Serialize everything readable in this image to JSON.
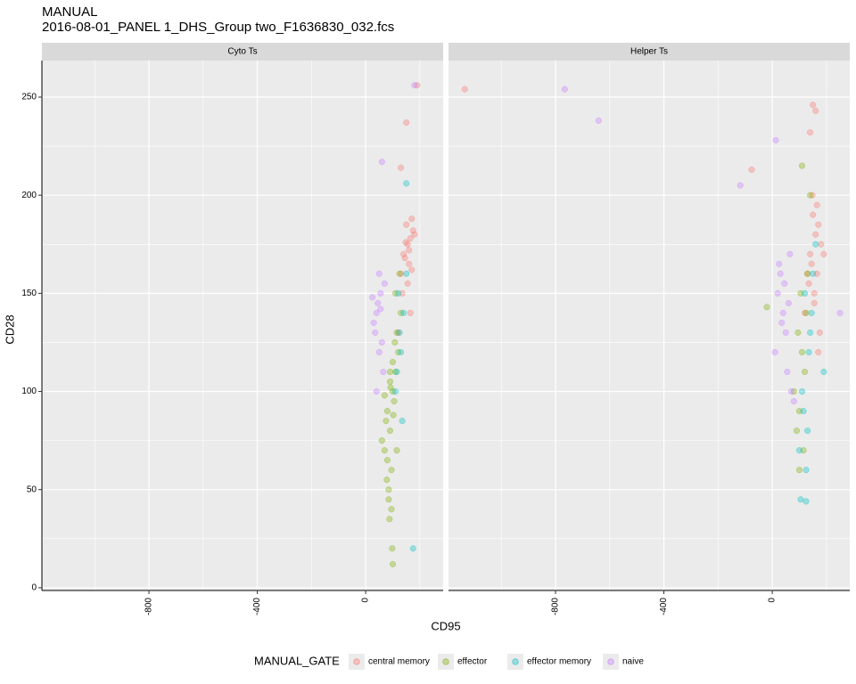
{
  "chart_data": {
    "type": "scatter",
    "title": "MANUAL",
    "subtitle": "2016-08-01_PANEL 1_DHS_Group two_F1636830_032.fcs",
    "x_label": "CD95",
    "y_label": "CD28",
    "legend_title": "MANUAL_GATE",
    "facets": [
      "Cyto Ts",
      "Helper Ts"
    ],
    "xlim": [
      -1195,
      286
    ],
    "ylim": [
      -1.4,
      268.6
    ],
    "xticks": [
      -800,
      -400,
      0
    ],
    "yticks": [
      0,
      50,
      100,
      150,
      200,
      250
    ],
    "minor_xticks": [
      -1000,
      -600,
      -200,
      200
    ],
    "minor_yticks": [
      25,
      75,
      125,
      175,
      225
    ],
    "grid": true,
    "series": [
      {
        "name": "central memory",
        "color": "#F8766D",
        "x": [
          [
            150,
            165,
            140,
            175,
            160,
            130,
            155,
            170,
            145,
            180,
            135,
            160,
            190,
            150,
            148,
            130,
            165,
            120,
            155,
            170
          ],
          [
            -1135,
            150,
            160,
            140,
            170,
            130,
            180,
            155,
            165,
            145,
            120,
            175,
            150,
            160,
            148,
            135,
            190,
            -76,
            170,
            155,
            165,
            140
          ]
        ],
        "values": [
          [
            185,
            178,
            170,
            182,
            165,
            160,
            175,
            188,
            168,
            180,
            150,
            172,
            256,
            237,
            176,
            214,
            140,
            130,
            155,
            162
          ],
          [
            254,
            190,
            180,
            170,
            185,
            160,
            175,
            150,
            195,
            165,
            140,
            130,
            246,
            243,
            200,
            155,
            170,
            213,
            120,
            145,
            160,
            232
          ]
        ]
      },
      {
        "name": "effector",
        "color": "#7CAE00",
        "x": [
          [
            80,
            100,
            90,
            110,
            70,
            120,
            95,
            85,
            105,
            75,
            115,
            90,
            100,
            60,
            130,
            95,
            80,
            110,
            88,
            102,
            92,
            78,
            108,
            98,
            85,
            125,
            70,
            115,
            90,
            100
          ],
          [
            100,
            120,
            90,
            110,
            130,
            80,
            105,
            115,
            95,
            125,
            140,
            100,
            110,
            -20
          ]
        ],
        "values": [
          [
            90,
            100,
            80,
            110,
            70,
            120,
            60,
            50,
            95,
            85,
            130,
            105,
            115,
            75,
            140,
            40,
            65,
            150,
            35,
            88,
            102,
            55,
            125,
            20,
            45,
            160,
            98,
            70,
            110,
            12
          ],
          [
            90,
            110,
            80,
            120,
            160,
            100,
            150,
            70,
            130,
            140,
            200,
            60,
            215,
            143
          ]
        ]
      },
      {
        "name": "effector memory",
        "color": "#00BFC4",
        "x": [
          [
            120,
            140,
            130,
            110,
            150,
            125,
            135,
            150,
            115,
            175
          ],
          [
            120,
            140,
            110,
            130,
            150,
            100,
            125,
            145,
            115,
            135,
            105,
            160,
            125,
            190
          ]
        ],
        "values": [
          [
            150,
            140,
            120,
            100,
            160,
            130,
            85,
            206,
            110,
            20
          ],
          [
            150,
            130,
            100,
            80,
            160,
            70,
            60,
            140,
            90,
            120,
            45,
            175,
            44,
            110
          ]
        ]
      },
      {
        "name": "naive",
        "color": "#C77CFF",
        "x": [
          [
            40,
            55,
            30,
            60,
            45,
            70,
            35,
            50,
            25,
            65,
            60,
            50,
            180,
            40,
            55
          ],
          [
            -766,
            -641,
            -118,
            13,
            20,
            40,
            30,
            50,
            60,
            10,
            45,
            35,
            55,
            25,
            70,
            80,
            65,
            250
          ]
        ],
        "values": [
          [
            140,
            150,
            135,
            125,
            145,
            155,
            130,
            120,
            148,
            110,
            217,
            160,
            256,
            100,
            142
          ],
          [
            254,
            238,
            205,
            228,
            150,
            140,
            160,
            130,
            145,
            120,
            155,
            135,
            110,
            165,
            100,
            95,
            170,
            140
          ]
        ]
      }
    ]
  }
}
